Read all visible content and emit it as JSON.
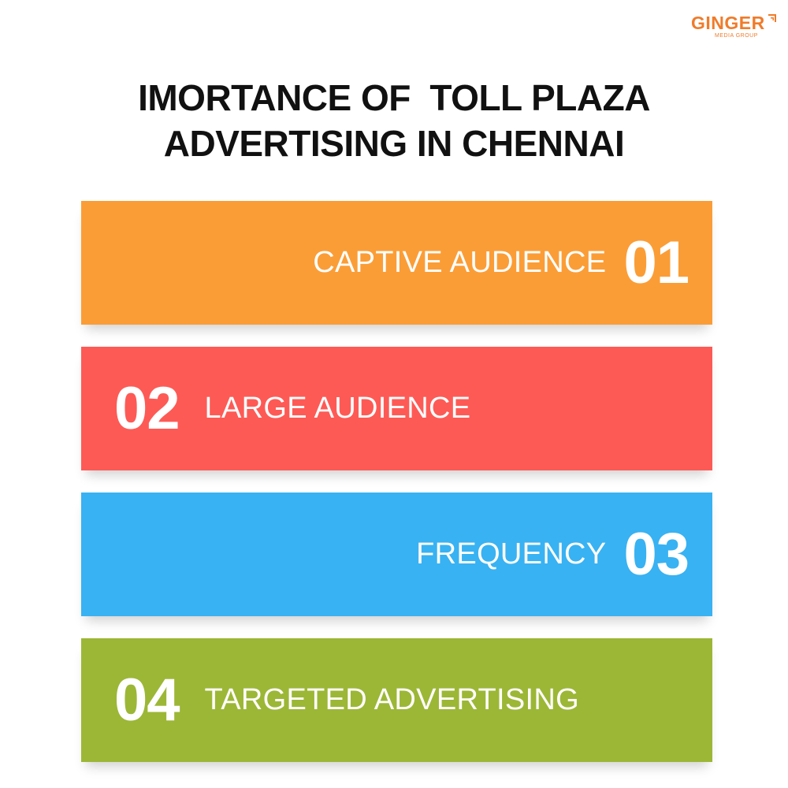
{
  "logo": {
    "name": "GINGER",
    "tagline": "MEDIA GROUP",
    "color": "#f07b2a"
  },
  "title": {
    "lines": [
      "IMORTANCE OF  TOLL PLAZA",
      "ADVERTISING IN CHENNAI"
    ]
  },
  "items": [
    {
      "number": "01",
      "label": "CAPTIVE AUDIENCE",
      "color": "#fb9d36"
    },
    {
      "number": "02",
      "label": "LARGE AUDIENCE",
      "color": "#fe5a55"
    },
    {
      "number": "03",
      "label": "FREQUENCY",
      "color": "#38b2f2"
    },
    {
      "number": "04",
      "label": "TARGETED ADVERTISING",
      "color": "#9cb736"
    }
  ]
}
